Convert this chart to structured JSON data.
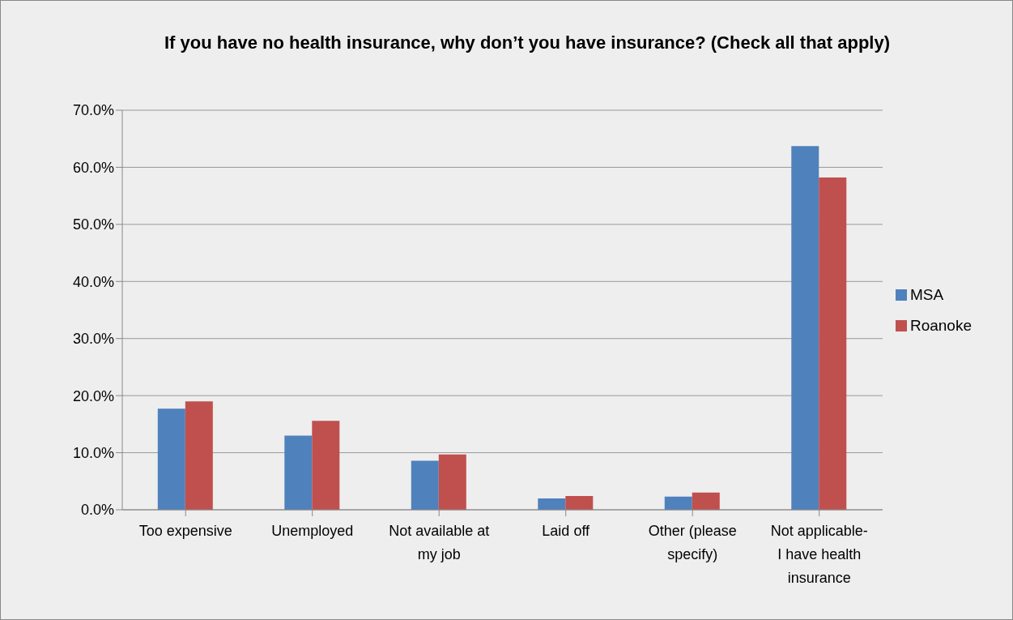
{
  "chart_data": {
    "type": "bar",
    "title": "If you have no health insurance, why don’t you have insurance? (Check all that apply)",
    "categories": [
      "Too expensive",
      "Unemployed",
      "Not available at my job",
      "Laid off",
      "Other (please specify)",
      "Not applicable- I have health insurance"
    ],
    "series": [
      {
        "name": "MSA",
        "color": "#4f81bd",
        "values": [
          17.7,
          13.0,
          8.6,
          2.0,
          2.3,
          63.7
        ]
      },
      {
        "name": "Roanoke",
        "color": "#c0504d",
        "values": [
          19.0,
          15.6,
          9.7,
          2.4,
          3.0,
          58.2
        ]
      }
    ],
    "ylim": [
      0,
      70
    ],
    "yticks": [
      {
        "value": 0,
        "label": "0.0%"
      },
      {
        "value": 10,
        "label": "10.0%"
      },
      {
        "value": 20,
        "label": "20.0%"
      },
      {
        "value": 30,
        "label": "30.0%"
      },
      {
        "value": 40,
        "label": "40.0%"
      },
      {
        "value": 50,
        "label": "50.0%"
      },
      {
        "value": 60,
        "label": "60.0%"
      },
      {
        "value": 70,
        "label": "70.0%"
      }
    ],
    "grid": "y",
    "legend": "right"
  }
}
